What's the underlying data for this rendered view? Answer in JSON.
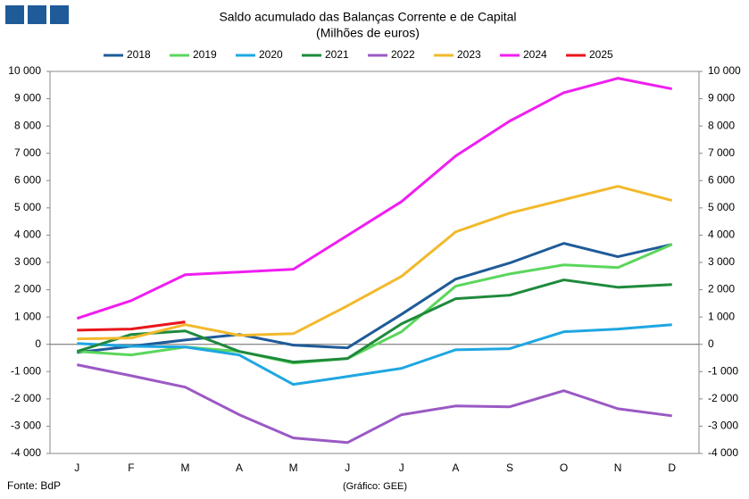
{
  "chart_data": {
    "type": "line",
    "title": "Saldo acumulado  das Balanças Corrente e de Capital",
    "subtitle": "(Milhões de euros)",
    "categories": [
      "J",
      "F",
      "M",
      "A",
      "M",
      "J",
      "J",
      "A",
      "S",
      "O",
      "N",
      "D"
    ],
    "series": [
      {
        "name": "2018",
        "color": "#1f5b99",
        "values": [
          -300,
          -70,
          160,
          360,
          -30,
          -130,
          1100,
          2390,
          2980,
          3700,
          3210,
          3660
        ]
      },
      {
        "name": "2019",
        "color": "#5bd65b",
        "values": [
          -260,
          -390,
          -100,
          -260,
          -690,
          -520,
          460,
          2130,
          2580,
          2910,
          2810,
          3660
        ]
      },
      {
        "name": "2020",
        "color": "#1ea7e1",
        "values": [
          30,
          -70,
          -100,
          -390,
          -1470,
          -1180,
          -880,
          -200,
          -160,
          460,
          560,
          720
        ]
      },
      {
        "name": "2021",
        "color": "#1e8a3c",
        "values": [
          -260,
          360,
          490,
          -260,
          -650,
          -520,
          750,
          1670,
          1800,
          2360,
          2090,
          2190
        ]
      },
      {
        "name": "2022",
        "color": "#9b59c4",
        "values": [
          -750,
          -1150,
          -1570,
          -2580,
          -3430,
          -3600,
          -2580,
          -2260,
          -2290,
          -1700,
          -2360,
          -2620
        ]
      },
      {
        "name": "2023",
        "color": "#f2b92b",
        "values": [
          200,
          230,
          720,
          330,
          390,
          1410,
          2490,
          4120,
          4810,
          5300,
          5790,
          5270
        ]
      },
      {
        "name": "2024",
        "color": "#f01ef0",
        "values": [
          950,
          1600,
          2550,
          2650,
          2750,
          3990,
          5230,
          6900,
          8180,
          9220,
          9750,
          9360
        ]
      },
      {
        "name": "2025",
        "color": "#e8161b",
        "values": [
          520,
          560,
          820,
          null,
          null,
          null,
          null,
          null,
          null,
          null,
          null,
          null
        ]
      }
    ],
    "ylim": [
      -4000,
      10000
    ],
    "yticks": [
      {
        "value": -4000,
        "label": "-4 000"
      },
      {
        "value": -3000,
        "label": "-3 000"
      },
      {
        "value": -2000,
        "label": "-2 000"
      },
      {
        "value": -1000,
        "label": "-1 000"
      },
      0,
      {
        "value": 1000,
        "label": "1 000"
      },
      {
        "value": 2000,
        "label": "2 000"
      },
      {
        "value": 3000,
        "label": "3 000"
      },
      {
        "value": 4000,
        "label": "4 000"
      },
      {
        "value": 5000,
        "label": "5 000"
      },
      {
        "value": 6000,
        "label": "6 000"
      },
      {
        "value": 7000,
        "label": "7 000"
      },
      {
        "value": 8000,
        "label": "8 000"
      },
      {
        "value": 9000,
        "label": "9 000"
      },
      {
        "value": 10000,
        "label": "10 000"
      }
    ],
    "grid": false,
    "legend": "top",
    "source": "Fonte: BdP",
    "credit": "(Gráfico: GEE)"
  }
}
